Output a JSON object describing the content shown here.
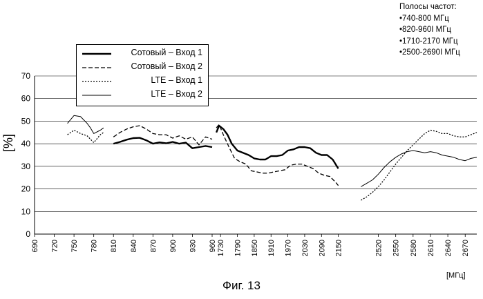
{
  "frequency_bands": {
    "title": "Полосы частот:",
    "items": [
      "740-800  МГц",
      "820-960І МГц",
      "1710-2170  МГц",
      "2500-2690І МГц"
    ]
  },
  "figure_caption": "Фиг. 13",
  "chart_data": {
    "type": "line",
    "ylabel": "[%]",
    "xlabel_unit": "[МГц]",
    "ylim": [
      0,
      70
    ],
    "yticks": [
      0,
      10,
      20,
      30,
      40,
      50,
      60,
      70
    ],
    "grid": true,
    "legend_position": "top-left",
    "panels": [
      {
        "x_ticks": [
          "690",
          "720",
          "750",
          "780",
          "810",
          "840",
          "870",
          "900",
          "930",
          "960"
        ],
        "xlim": [
          690,
          960
        ]
      },
      {
        "x_ticks": [
          "1730",
          "1790",
          "1850",
          "1910",
          "1970",
          "2030",
          "2090",
          "2150"
        ],
        "xlim": [
          1700,
          2210
        ]
      },
      {
        "x_ticks": [
          "2520",
          "2550",
          "2580",
          "2610",
          "2640",
          "2670"
        ],
        "xlim": [
          2480,
          2690
        ]
      }
    ],
    "series": [
      {
        "name": "Сотовый – Вход 1",
        "style": "thick-solid",
        "points": [
          [
            810,
            40
          ],
          [
            820,
            40.8
          ],
          [
            830,
            41.8
          ],
          [
            840,
            42.5
          ],
          [
            850,
            42.6
          ],
          [
            860,
            41.5
          ],
          [
            870,
            40
          ],
          [
            880,
            40.6
          ],
          [
            890,
            40.2
          ],
          [
            900,
            40.8
          ],
          [
            910,
            40
          ],
          [
            920,
            40.5
          ],
          [
            930,
            38
          ],
          [
            940,
            38.5
          ],
          [
            950,
            39
          ],
          [
            960,
            38.5
          ],
          [
            1715,
            45
          ],
          [
            1725,
            48
          ],
          [
            1740,
            46.5
          ],
          [
            1755,
            44
          ],
          [
            1770,
            40
          ],
          [
            1790,
            37
          ],
          [
            1810,
            36
          ],
          [
            1830,
            35
          ],
          [
            1850,
            33.5
          ],
          [
            1870,
            33
          ],
          [
            1890,
            33
          ],
          [
            1910,
            34.5
          ],
          [
            1930,
            34.5
          ],
          [
            1950,
            35
          ],
          [
            1970,
            37
          ],
          [
            1990,
            37.5
          ],
          [
            2010,
            38.5
          ],
          [
            2030,
            38.5
          ],
          [
            2050,
            38
          ],
          [
            2070,
            36
          ],
          [
            2090,
            35
          ],
          [
            2110,
            35
          ],
          [
            2130,
            33
          ],
          [
            2150,
            29
          ]
        ]
      },
      {
        "name": "Сотовый – Вход 2",
        "style": "dashed",
        "points": [
          [
            810,
            43
          ],
          [
            820,
            45
          ],
          [
            830,
            46.5
          ],
          [
            840,
            47.5
          ],
          [
            850,
            48
          ],
          [
            860,
            46.5
          ],
          [
            870,
            44.5
          ],
          [
            880,
            44
          ],
          [
            890,
            44
          ],
          [
            900,
            42.5
          ],
          [
            910,
            43.5
          ],
          [
            920,
            42
          ],
          [
            930,
            43
          ],
          [
            940,
            39.5
          ],
          [
            950,
            43
          ],
          [
            960,
            42
          ],
          [
            1715,
            47
          ],
          [
            1725,
            48.5
          ],
          [
            1740,
            44
          ],
          [
            1760,
            38.5
          ],
          [
            1780,
            33.5
          ],
          [
            1800,
            32
          ],
          [
            1820,
            31
          ],
          [
            1840,
            28
          ],
          [
            1860,
            27.5
          ],
          [
            1880,
            27
          ],
          [
            1900,
            27
          ],
          [
            1920,
            27.5
          ],
          [
            1940,
            28
          ],
          [
            1960,
            28.5
          ],
          [
            1980,
            30.5
          ],
          [
            2000,
            31
          ],
          [
            2020,
            31
          ],
          [
            2040,
            30
          ],
          [
            2060,
            29
          ],
          [
            2080,
            27
          ],
          [
            2100,
            26
          ],
          [
            2120,
            25.5
          ],
          [
            2140,
            23
          ],
          [
            2150,
            21.5
          ]
        ]
      },
      {
        "name": "LTE – Вход 1",
        "style": "dotted",
        "points": [
          [
            740,
            44
          ],
          [
            750,
            46
          ],
          [
            760,
            44.5
          ],
          [
            770,
            43.5
          ],
          [
            780,
            40.5
          ],
          [
            790,
            44
          ],
          [
            795,
            45
          ],
          [
            2490,
            15
          ],
          [
            2500,
            16.5
          ],
          [
            2510,
            18.5
          ],
          [
            2520,
            21
          ],
          [
            2530,
            24
          ],
          [
            2540,
            27.5
          ],
          [
            2550,
            31
          ],
          [
            2560,
            34
          ],
          [
            2570,
            37
          ],
          [
            2580,
            39.5
          ],
          [
            2590,
            42
          ],
          [
            2600,
            44.5
          ],
          [
            2610,
            46
          ],
          [
            2620,
            45.5
          ],
          [
            2630,
            44.5
          ],
          [
            2640,
            44.5
          ],
          [
            2650,
            43.5
          ],
          [
            2660,
            43
          ],
          [
            2670,
            43
          ],
          [
            2680,
            44
          ],
          [
            2690,
            45
          ]
        ]
      },
      {
        "name": "LTE – Вход 2",
        "style": "thin-solid",
        "points": [
          [
            740,
            49
          ],
          [
            750,
            52.5
          ],
          [
            760,
            52
          ],
          [
            770,
            49
          ],
          [
            775,
            47
          ],
          [
            780,
            44.5
          ],
          [
            790,
            46
          ],
          [
            795,
            47
          ],
          [
            2490,
            21
          ],
          [
            2500,
            22.5
          ],
          [
            2510,
            24
          ],
          [
            2520,
            26.5
          ],
          [
            2530,
            29.5
          ],
          [
            2540,
            32
          ],
          [
            2550,
            34
          ],
          [
            2560,
            35.5
          ],
          [
            2570,
            36.5
          ],
          [
            2580,
            37
          ],
          [
            2590,
            36.5
          ],
          [
            2600,
            36
          ],
          [
            2610,
            36.5
          ],
          [
            2620,
            36
          ],
          [
            2630,
            35
          ],
          [
            2640,
            34.5
          ],
          [
            2650,
            34
          ],
          [
            2660,
            33
          ],
          [
            2670,
            32.5
          ],
          [
            2680,
            33.5
          ],
          [
            2690,
            34
          ]
        ]
      }
    ]
  }
}
